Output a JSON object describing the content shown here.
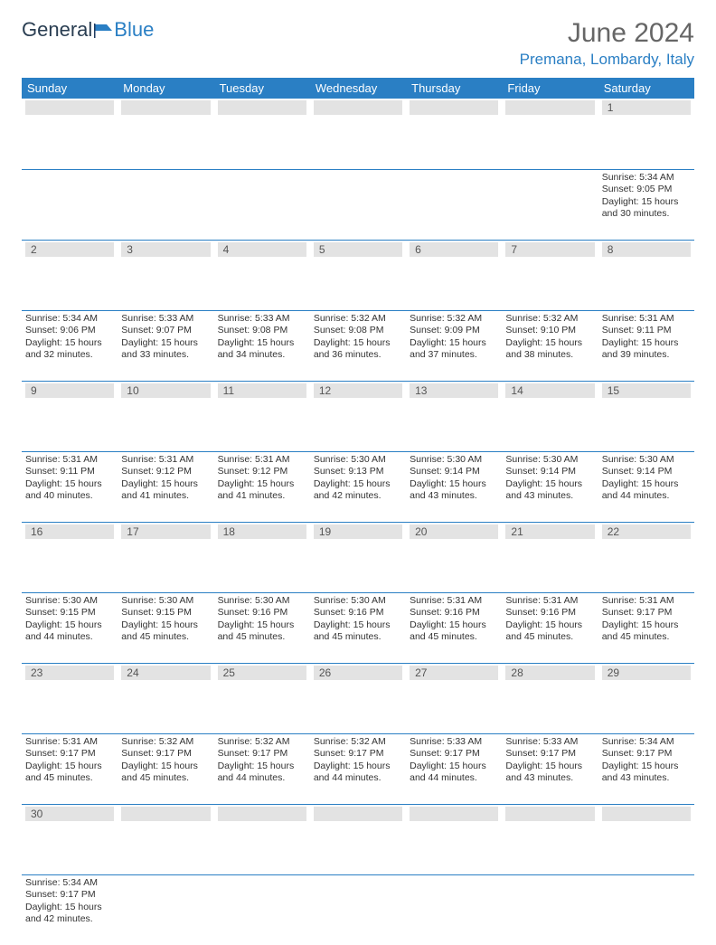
{
  "logo": {
    "text1": "General",
    "text2": "Blue"
  },
  "header": {
    "month": "June 2024",
    "location": "Premana, Lombardy, Italy"
  },
  "weekdays": [
    "Sunday",
    "Monday",
    "Tuesday",
    "Wednesday",
    "Thursday",
    "Friday",
    "Saturday"
  ],
  "colors": {
    "accent": "#2a7fc4",
    "daynum_bg": "#e3e3e3"
  },
  "weeks": [
    [
      null,
      null,
      null,
      null,
      null,
      null,
      {
        "n": "1",
        "sr": "Sunrise: 5:34 AM",
        "ss": "Sunset: 9:05 PM",
        "d1": "Daylight: 15 hours",
        "d2": "and 30 minutes."
      }
    ],
    [
      {
        "n": "2",
        "sr": "Sunrise: 5:34 AM",
        "ss": "Sunset: 9:06 PM",
        "d1": "Daylight: 15 hours",
        "d2": "and 32 minutes."
      },
      {
        "n": "3",
        "sr": "Sunrise: 5:33 AM",
        "ss": "Sunset: 9:07 PM",
        "d1": "Daylight: 15 hours",
        "d2": "and 33 minutes."
      },
      {
        "n": "4",
        "sr": "Sunrise: 5:33 AM",
        "ss": "Sunset: 9:08 PM",
        "d1": "Daylight: 15 hours",
        "d2": "and 34 minutes."
      },
      {
        "n": "5",
        "sr": "Sunrise: 5:32 AM",
        "ss": "Sunset: 9:08 PM",
        "d1": "Daylight: 15 hours",
        "d2": "and 36 minutes."
      },
      {
        "n": "6",
        "sr": "Sunrise: 5:32 AM",
        "ss": "Sunset: 9:09 PM",
        "d1": "Daylight: 15 hours",
        "d2": "and 37 minutes."
      },
      {
        "n": "7",
        "sr": "Sunrise: 5:32 AM",
        "ss": "Sunset: 9:10 PM",
        "d1": "Daylight: 15 hours",
        "d2": "and 38 minutes."
      },
      {
        "n": "8",
        "sr": "Sunrise: 5:31 AM",
        "ss": "Sunset: 9:11 PM",
        "d1": "Daylight: 15 hours",
        "d2": "and 39 minutes."
      }
    ],
    [
      {
        "n": "9",
        "sr": "Sunrise: 5:31 AM",
        "ss": "Sunset: 9:11 PM",
        "d1": "Daylight: 15 hours",
        "d2": "and 40 minutes."
      },
      {
        "n": "10",
        "sr": "Sunrise: 5:31 AM",
        "ss": "Sunset: 9:12 PM",
        "d1": "Daylight: 15 hours",
        "d2": "and 41 minutes."
      },
      {
        "n": "11",
        "sr": "Sunrise: 5:31 AM",
        "ss": "Sunset: 9:12 PM",
        "d1": "Daylight: 15 hours",
        "d2": "and 41 minutes."
      },
      {
        "n": "12",
        "sr": "Sunrise: 5:30 AM",
        "ss": "Sunset: 9:13 PM",
        "d1": "Daylight: 15 hours",
        "d2": "and 42 minutes."
      },
      {
        "n": "13",
        "sr": "Sunrise: 5:30 AM",
        "ss": "Sunset: 9:14 PM",
        "d1": "Daylight: 15 hours",
        "d2": "and 43 minutes."
      },
      {
        "n": "14",
        "sr": "Sunrise: 5:30 AM",
        "ss": "Sunset: 9:14 PM",
        "d1": "Daylight: 15 hours",
        "d2": "and 43 minutes."
      },
      {
        "n": "15",
        "sr": "Sunrise: 5:30 AM",
        "ss": "Sunset: 9:14 PM",
        "d1": "Daylight: 15 hours",
        "d2": "and 44 minutes."
      }
    ],
    [
      {
        "n": "16",
        "sr": "Sunrise: 5:30 AM",
        "ss": "Sunset: 9:15 PM",
        "d1": "Daylight: 15 hours",
        "d2": "and 44 minutes."
      },
      {
        "n": "17",
        "sr": "Sunrise: 5:30 AM",
        "ss": "Sunset: 9:15 PM",
        "d1": "Daylight: 15 hours",
        "d2": "and 45 minutes."
      },
      {
        "n": "18",
        "sr": "Sunrise: 5:30 AM",
        "ss": "Sunset: 9:16 PM",
        "d1": "Daylight: 15 hours",
        "d2": "and 45 minutes."
      },
      {
        "n": "19",
        "sr": "Sunrise: 5:30 AM",
        "ss": "Sunset: 9:16 PM",
        "d1": "Daylight: 15 hours",
        "d2": "and 45 minutes."
      },
      {
        "n": "20",
        "sr": "Sunrise: 5:31 AM",
        "ss": "Sunset: 9:16 PM",
        "d1": "Daylight: 15 hours",
        "d2": "and 45 minutes."
      },
      {
        "n": "21",
        "sr": "Sunrise: 5:31 AM",
        "ss": "Sunset: 9:16 PM",
        "d1": "Daylight: 15 hours",
        "d2": "and 45 minutes."
      },
      {
        "n": "22",
        "sr": "Sunrise: 5:31 AM",
        "ss": "Sunset: 9:17 PM",
        "d1": "Daylight: 15 hours",
        "d2": "and 45 minutes."
      }
    ],
    [
      {
        "n": "23",
        "sr": "Sunrise: 5:31 AM",
        "ss": "Sunset: 9:17 PM",
        "d1": "Daylight: 15 hours",
        "d2": "and 45 minutes."
      },
      {
        "n": "24",
        "sr": "Sunrise: 5:32 AM",
        "ss": "Sunset: 9:17 PM",
        "d1": "Daylight: 15 hours",
        "d2": "and 45 minutes."
      },
      {
        "n": "25",
        "sr": "Sunrise: 5:32 AM",
        "ss": "Sunset: 9:17 PM",
        "d1": "Daylight: 15 hours",
        "d2": "and 44 minutes."
      },
      {
        "n": "26",
        "sr": "Sunrise: 5:32 AM",
        "ss": "Sunset: 9:17 PM",
        "d1": "Daylight: 15 hours",
        "d2": "and 44 minutes."
      },
      {
        "n": "27",
        "sr": "Sunrise: 5:33 AM",
        "ss": "Sunset: 9:17 PM",
        "d1": "Daylight: 15 hours",
        "d2": "and 44 minutes."
      },
      {
        "n": "28",
        "sr": "Sunrise: 5:33 AM",
        "ss": "Sunset: 9:17 PM",
        "d1": "Daylight: 15 hours",
        "d2": "and 43 minutes."
      },
      {
        "n": "29",
        "sr": "Sunrise: 5:34 AM",
        "ss": "Sunset: 9:17 PM",
        "d1": "Daylight: 15 hours",
        "d2": "and 43 minutes."
      }
    ],
    [
      {
        "n": "30",
        "sr": "Sunrise: 5:34 AM",
        "ss": "Sunset: 9:17 PM",
        "d1": "Daylight: 15 hours",
        "d2": "and 42 minutes."
      },
      null,
      null,
      null,
      null,
      null,
      null
    ]
  ]
}
